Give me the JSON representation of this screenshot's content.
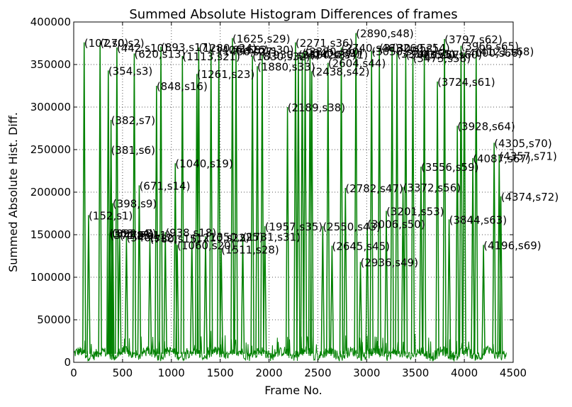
{
  "chart_data": {
    "type": "line",
    "title": "Summed Absolute Histogram Differences of frames",
    "xlabel": "Frame No.",
    "ylabel": "Summed Absolute Hist. Diff.",
    "xlim": [
      0,
      4500
    ],
    "ylim": [
      0,
      400000
    ],
    "x_ticks": [
      0,
      500,
      1000,
      1500,
      2000,
      2500,
      3000,
      3500,
      4000,
      4500
    ],
    "y_ticks": [
      0,
      50000,
      100000,
      150000,
      200000,
      250000,
      300000,
      350000,
      400000
    ],
    "x_tick_labels": [
      "0",
      "500",
      "1000",
      "1500",
      "2000",
      "2500",
      "3000",
      "3500",
      "4000",
      "4500"
    ],
    "y_tick_labels": [
      "0",
      "50000",
      "100000",
      "150000",
      "200000",
      "250000",
      "300000",
      "350000",
      "400000"
    ],
    "grid": true,
    "line_color": "#008000",
    "baseline_level": 10000,
    "peaks": [
      {
        "x": 107,
        "y": 376000,
        "label": "(107,s0)"
      },
      {
        "x": 152,
        "y": 173000,
        "label": "(152,s1)"
      },
      {
        "x": 270,
        "y": 376000,
        "label": "(270,s2)"
      },
      {
        "x": 354,
        "y": 343000,
        "label": "(354,s3)"
      },
      {
        "x": 363,
        "y": 152000,
        "label": "(363,s4)"
      },
      {
        "x": 371,
        "y": 150000,
        "label": "(371,s5)"
      },
      {
        "x": 381,
        "y": 250000,
        "label": "(381,s6)"
      },
      {
        "x": 382,
        "y": 285000,
        "label": "(382,s7)"
      },
      {
        "x": 393,
        "y": 152000,
        "label": "(393,s8)"
      },
      {
        "x": 398,
        "y": 187000,
        "label": "(398,s9)"
      },
      {
        "x": 442,
        "y": 370000,
        "label": "(442,s10)"
      },
      {
        "x": 470,
        "y": 150000,
        "label": "(470,s11)"
      },
      {
        "x": 540,
        "y": 147000,
        "label": "(540,s12)"
      },
      {
        "x": 620,
        "y": 363000,
        "label": "(620,s13)"
      },
      {
        "x": 671,
        "y": 208000,
        "label": "(671,s14)"
      },
      {
        "x": 780,
        "y": 146000,
        "label": "(780,s15)"
      },
      {
        "x": 848,
        "y": 325000,
        "label": "(848,s16)"
      },
      {
        "x": 893,
        "y": 371000,
        "label": "(893,s17)"
      },
      {
        "x": 938,
        "y": 153000,
        "label": "(938,s18)"
      },
      {
        "x": 1040,
        "y": 234000,
        "label": "(1040,s19)"
      },
      {
        "x": 1060,
        "y": 138000,
        "label": "(1060,s20)"
      },
      {
        "x": 1113,
        "y": 360000,
        "label": "(1113,s21)"
      },
      {
        "x": 1210,
        "y": 147000,
        "label": "(1210,s22)"
      },
      {
        "x": 1261,
        "y": 339000,
        "label": "(1261,s23)"
      },
      {
        "x": 1280,
        "y": 370000,
        "label": "(1280,s24)"
      },
      {
        "x": 1350,
        "y": 148000,
        "label": "(1350,s25)"
      },
      {
        "x": 1406,
        "y": 368000,
        "label": "(1406,s26)"
      },
      {
        "x": 1486,
        "y": 366000,
        "label": "(1486,s27)"
      },
      {
        "x": 1511,
        "y": 133000,
        "label": "(1511,s28)"
      },
      {
        "x": 1625,
        "y": 381000,
        "label": "(1625,s29)"
      },
      {
        "x": 1662,
        "y": 368000,
        "label": "(1662,s30)"
      },
      {
        "x": 1731,
        "y": 148000,
        "label": "(1731,s31)"
      },
      {
        "x": 1830,
        "y": 360000,
        "label": "(1830,s32)"
      },
      {
        "x": 1880,
        "y": 348000,
        "label": "(1880,s33)"
      },
      {
        "x": 1930,
        "y": 362000,
        "label": "(1930,s34)"
      },
      {
        "x": 1957,
        "y": 160000,
        "label": "(1957,s35)"
      },
      {
        "x": 2271,
        "y": 376000,
        "label": "(2271,s36)"
      },
      {
        "x": 2300,
        "y": 362000,
        "label": "(2300,s37)"
      },
      {
        "x": 2189,
        "y": 300000,
        "label": "(2189,s38)"
      },
      {
        "x": 2340,
        "y": 364000,
        "label": "(2340,s39)"
      },
      {
        "x": 2370,
        "y": 366000,
        "label": "(2370,s40)"
      },
      {
        "x": 2420,
        "y": 362000,
        "label": "(2420,s41)"
      },
      {
        "x": 2438,
        "y": 342000,
        "label": "(2438,s42)"
      },
      {
        "x": 2550,
        "y": 160000,
        "label": "(2550,s43)"
      },
      {
        "x": 2604,
        "y": 352000,
        "label": "(2604,s44)"
      },
      {
        "x": 2645,
        "y": 137000,
        "label": "(2645,s45)"
      },
      {
        "x": 2740,
        "y": 370000,
        "label": "(2740,s46)"
      },
      {
        "x": 2782,
        "y": 205000,
        "label": "(2782,s47)"
      },
      {
        "x": 2890,
        "y": 387000,
        "label": "(2890,s48)"
      },
      {
        "x": 2936,
        "y": 118000,
        "label": "(2936,s49)"
      },
      {
        "x": 3006,
        "y": 163000,
        "label": "(3006,s50)"
      },
      {
        "x": 3050,
        "y": 366000,
        "label": "(3050,s51)"
      },
      {
        "x": 3130,
        "y": 370000,
        "label": "(3130,s52)"
      },
      {
        "x": 3201,
        "y": 178000,
        "label": "(3201,s53)"
      },
      {
        "x": 3260,
        "y": 370000,
        "label": "(3260,s54)"
      },
      {
        "x": 3310,
        "y": 363000,
        "label": "(3310,s55)"
      },
      {
        "x": 3372,
        "y": 206000,
        "label": "(3372,s56)"
      },
      {
        "x": 3400,
        "y": 362000,
        "label": "(3400,s57)"
      },
      {
        "x": 3473,
        "y": 358000,
        "label": "(3473,s58)"
      },
      {
        "x": 3556,
        "y": 230000,
        "label": "(3556,s59)"
      },
      {
        "x": 3590,
        "y": 362000,
        "label": "(3590,s60)"
      },
      {
        "x": 3724,
        "y": 330000,
        "label": "(3724,s61)"
      },
      {
        "x": 3797,
        "y": 380000,
        "label": "(3797,s62)"
      },
      {
        "x": 3844,
        "y": 168000,
        "label": "(3844,s63)"
      },
      {
        "x": 3928,
        "y": 278000,
        "label": "(3928,s64)"
      },
      {
        "x": 3966,
        "y": 372000,
        "label": "(3966,s65)"
      },
      {
        "x": 4000,
        "y": 364000,
        "label": "(4000,s66)"
      },
      {
        "x": 4087,
        "y": 240000,
        "label": "(4087,s67)"
      },
      {
        "x": 4121,
        "y": 366000,
        "label": "(4121,s68)"
      },
      {
        "x": 4196,
        "y": 138000,
        "label": "(4196,s69)"
      },
      {
        "x": 4305,
        "y": 258000,
        "label": "(4305,s70)"
      },
      {
        "x": 4357,
        "y": 243000,
        "label": "(4357,s71)"
      },
      {
        "x": 4374,
        "y": 195000,
        "label": "(4374,s72)"
      }
    ]
  }
}
